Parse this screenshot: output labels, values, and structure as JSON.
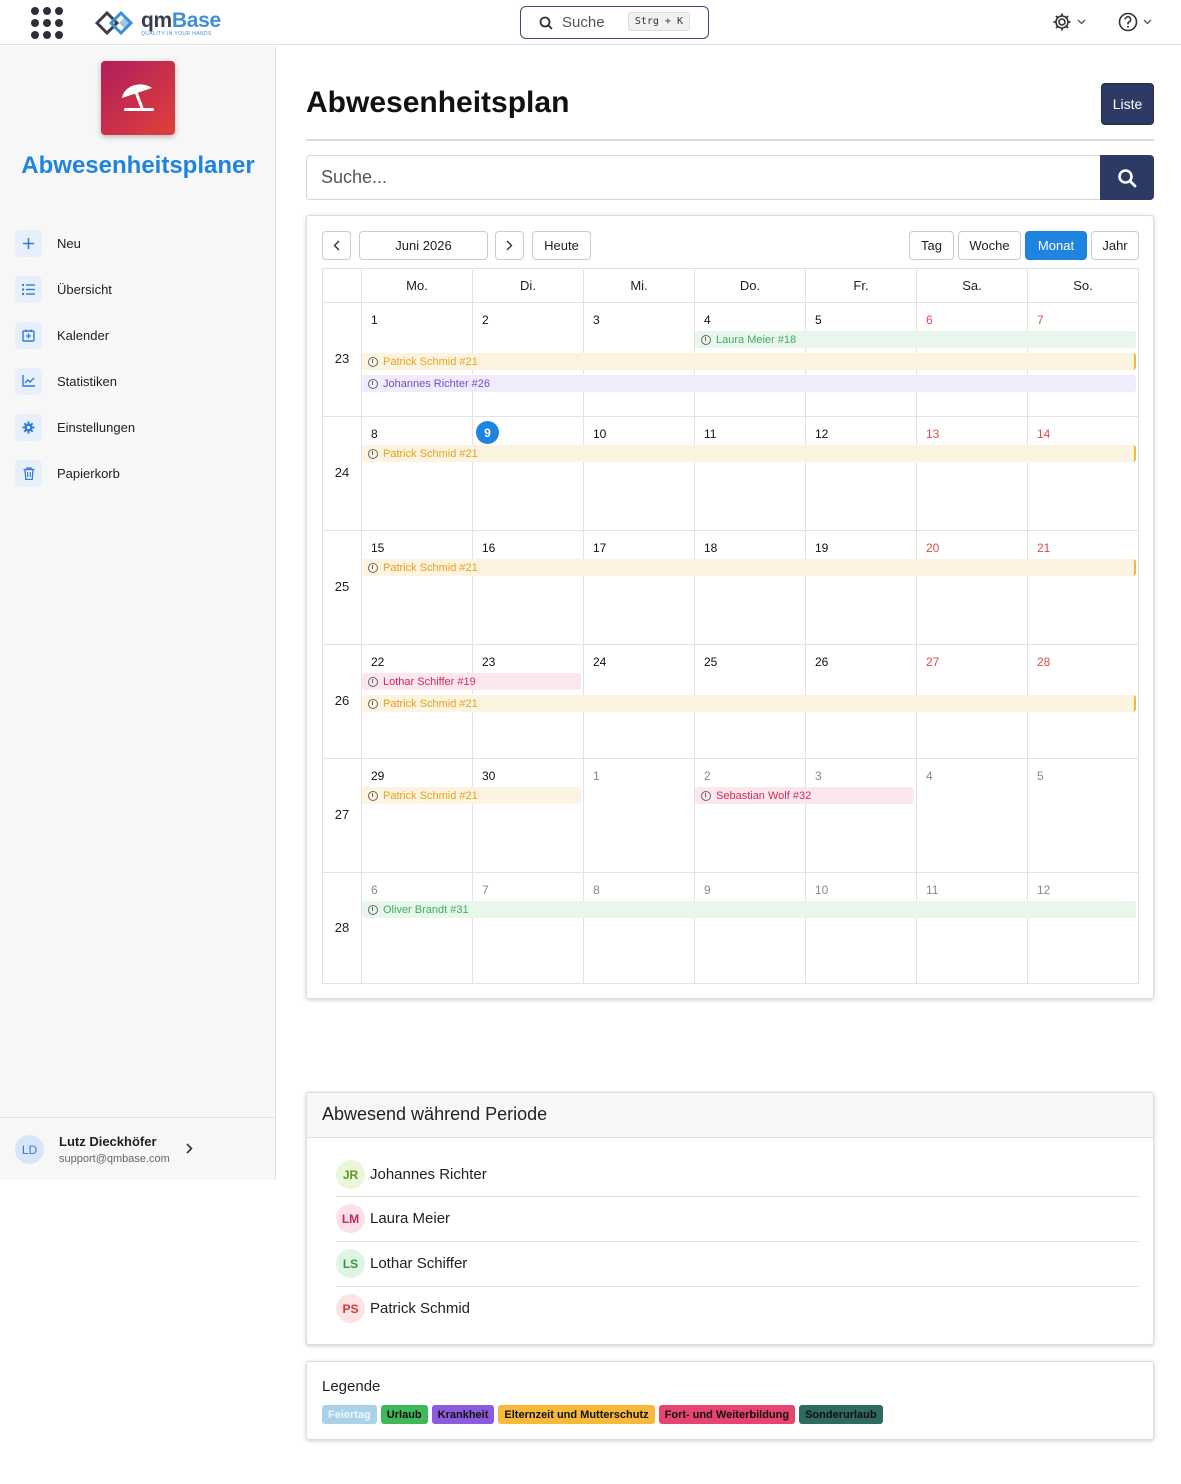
{
  "topbar": {
    "logo_name": "qm",
    "logo_name_accent": "Base",
    "logo_tagline": "QUALITY IN YOUR HANDS",
    "search_label": "Suche",
    "search_shortcut": "Strg + K"
  },
  "sidebar": {
    "app_title": "Abwesenheitsplaner",
    "items": [
      {
        "label": "Neu",
        "icon": "plus-icon"
      },
      {
        "label": "Übersicht",
        "icon": "list-icon"
      },
      {
        "label": "Kalender",
        "icon": "calendar-plus-icon"
      },
      {
        "label": "Statistiken",
        "icon": "chart-line-icon"
      },
      {
        "label": "Einstellungen",
        "icon": "gear-icon"
      },
      {
        "label": "Papierkorb",
        "icon": "trash-icon"
      }
    ],
    "user": {
      "initials": "LD",
      "name": "Lutz Dieckhöfer",
      "email": "support@qmbase.com"
    }
  },
  "main": {
    "title": "Abwesenheitsplan",
    "list_button": "Liste",
    "search_placeholder": "Suche..."
  },
  "calendar": {
    "month_label": "Juni 2026",
    "today_button": "Heute",
    "views": [
      "Tag",
      "Woche",
      "Monat",
      "Jahr"
    ],
    "active_view": "Monat",
    "weekdays": [
      "Mo.",
      "Di.",
      "Mi.",
      "Do.",
      "Fr.",
      "Sa.",
      "So."
    ],
    "weeks": [
      {
        "number": "23",
        "days": [
          "1",
          "2",
          "3",
          "4",
          "5",
          "6",
          "7"
        ]
      },
      {
        "number": "24",
        "days": [
          "8",
          "9",
          "10",
          "11",
          "12",
          "13",
          "14"
        ]
      },
      {
        "number": "25",
        "days": [
          "15",
          "16",
          "17",
          "18",
          "19",
          "20",
          "21"
        ]
      },
      {
        "number": "26",
        "days": [
          "22",
          "23",
          "24",
          "25",
          "26",
          "27",
          "28"
        ]
      },
      {
        "number": "27",
        "days": [
          "29",
          "30",
          "1",
          "2",
          "3",
          "4",
          "5"
        ]
      },
      {
        "number": "28",
        "days": [
          "6",
          "7",
          "8",
          "9",
          "10",
          "11",
          "12"
        ]
      }
    ],
    "today": "9",
    "events": [
      {
        "label": "Laura Meier #18",
        "color": "g"
      },
      {
        "label": "Patrick Schmid #21",
        "color": "o"
      },
      {
        "label": "Johannes Richter #26",
        "color": "p"
      },
      {
        "label": "Patrick Schmid #21",
        "color": "o"
      },
      {
        "label": "Patrick Schmid #21",
        "color": "o"
      },
      {
        "label": "Lothar Schiffer #19",
        "color": "r"
      },
      {
        "label": "Patrick Schmid #21",
        "color": "o"
      },
      {
        "label": "Patrick Schmid #21",
        "color": "o"
      },
      {
        "label": "Sebastian Wolf #32",
        "color": "r"
      },
      {
        "label": "Oliver Brandt #31",
        "color": "g"
      }
    ]
  },
  "absent": {
    "title": "Abwesend während Periode",
    "people": [
      {
        "initials": "JR",
        "name": "Johannes Richter",
        "bg": "#eaf7d9",
        "fg": "#5c9a22"
      },
      {
        "initials": "LM",
        "name": "Laura Meier",
        "bg": "#fbe0ea",
        "fg": "#c2285a"
      },
      {
        "initials": "LS",
        "name": "Lothar Schiffer",
        "bg": "#dff5e3",
        "fg": "#2e9a48"
      },
      {
        "initials": "PS",
        "name": "Patrick Schmid",
        "bg": "#fde3e3",
        "fg": "#d23a3a"
      }
    ]
  },
  "legend": {
    "title": "Legende",
    "items": [
      {
        "label": "Feiertag",
        "bg": "#a9d2e8",
        "fg": "#eef7fb"
      },
      {
        "label": "Urlaub",
        "bg": "#3fb85a",
        "fg": "#111"
      },
      {
        "label": "Krankheit",
        "bg": "#8d5be0",
        "fg": "#111"
      },
      {
        "label": "Elternzeit und Mutterschutz",
        "bg": "#f7b93a",
        "fg": "#111"
      },
      {
        "label": "Fort- und Weiterbildung",
        "bg": "#e84470",
        "fg": "#111"
      },
      {
        "label": "Sonderurlaub",
        "bg": "#2f6b60",
        "fg": "#111"
      }
    ]
  }
}
